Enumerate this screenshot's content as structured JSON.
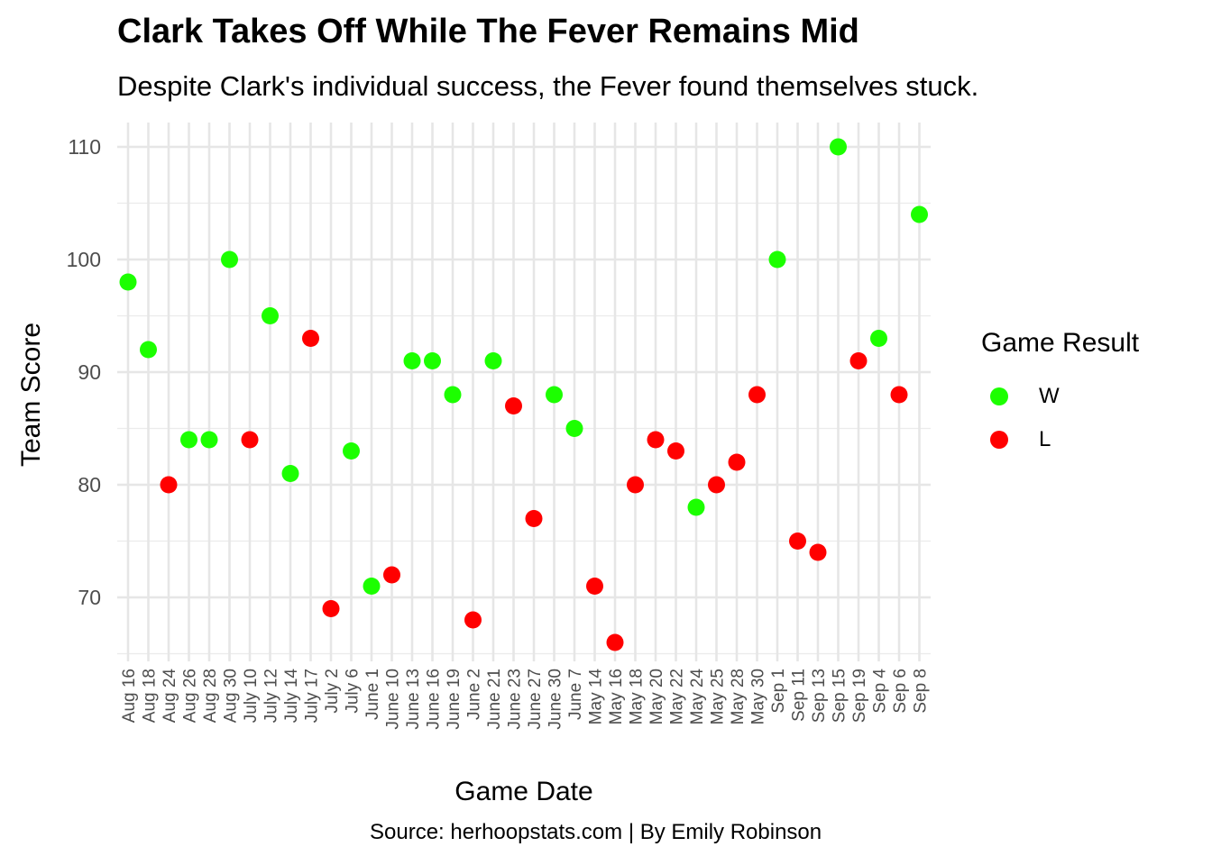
{
  "chart_data": {
    "type": "scatter",
    "title": "Clark Takes Off While The Fever Remains Mid",
    "subtitle": "Despite Clark's individual success, the Fever found themselves stuck.",
    "caption": "Source: herhoopstats.com | By Emily Robinson",
    "xlabel": "Game Date",
    "ylabel": "Team Score",
    "legend_title": "Game Result",
    "legend_position": "right",
    "grid": true,
    "x_scale": "discrete",
    "ylim": [
      64.5,
      111.5
    ],
    "y_ticks": [
      70,
      80,
      90,
      100,
      110
    ],
    "categories": [
      "Aug 16",
      "Aug 18",
      "Aug 24",
      "Aug 26",
      "Aug 28",
      "Aug 30",
      "July 10",
      "July 12",
      "July 14",
      "July 17",
      "July 2",
      "July 6",
      "June 1",
      "June 10",
      "June 13",
      "June 16",
      "June 19",
      "June 2",
      "June 21",
      "June 23",
      "June 27",
      "June 30",
      "June 7",
      "May 14",
      "May 16",
      "May 18",
      "May 20",
      "May 22",
      "May 24",
      "May 25",
      "May 28",
      "May 30",
      "Sep 1",
      "Sep 11",
      "Sep 13",
      "Sep 15",
      "Sep 19",
      "Sep 4",
      "Sep 6",
      "Sep 8"
    ],
    "series": [
      {
        "name": "W",
        "color": "#1CFF00",
        "points": [
          {
            "x": "Aug 16",
            "y": 98
          },
          {
            "x": "Aug 18",
            "y": 92
          },
          {
            "x": "Aug 26",
            "y": 84
          },
          {
            "x": "Aug 28",
            "y": 84
          },
          {
            "x": "Aug 30",
            "y": 100
          },
          {
            "x": "July 12",
            "y": 95
          },
          {
            "x": "July 14",
            "y": 81
          },
          {
            "x": "July 6",
            "y": 83
          },
          {
            "x": "June 1",
            "y": 71
          },
          {
            "x": "June 13",
            "y": 91
          },
          {
            "x": "June 16",
            "y": 91
          },
          {
            "x": "June 19",
            "y": 88
          },
          {
            "x": "June 21",
            "y": 91
          },
          {
            "x": "June 30",
            "y": 88
          },
          {
            "x": "June 7",
            "y": 85
          },
          {
            "x": "May 24",
            "y": 78
          },
          {
            "x": "Sep 1",
            "y": 100
          },
          {
            "x": "Sep 15",
            "y": 110
          },
          {
            "x": "Sep 4",
            "y": 93
          },
          {
            "x": "Sep 8",
            "y": 104
          }
        ]
      },
      {
        "name": "L",
        "color": "#FF0000",
        "points": [
          {
            "x": "Aug 24",
            "y": 80
          },
          {
            "x": "July 10",
            "y": 84
          },
          {
            "x": "July 17",
            "y": 93
          },
          {
            "x": "July 2",
            "y": 69
          },
          {
            "x": "June 10",
            "y": 72
          },
          {
            "x": "June 2",
            "y": 68
          },
          {
            "x": "June 23",
            "y": 87
          },
          {
            "x": "June 27",
            "y": 77
          },
          {
            "x": "May 14",
            "y": 71
          },
          {
            "x": "May 16",
            "y": 66
          },
          {
            "x": "May 18",
            "y": 80
          },
          {
            "x": "May 20",
            "y": 84
          },
          {
            "x": "May 22",
            "y": 83
          },
          {
            "x": "May 25",
            "y": 80
          },
          {
            "x": "May 28",
            "y": 82
          },
          {
            "x": "May 30",
            "y": 88
          },
          {
            "x": "Sep 11",
            "y": 75
          },
          {
            "x": "Sep 13",
            "y": 74
          },
          {
            "x": "Sep 19",
            "y": 91
          },
          {
            "x": "Sep 6",
            "y": 88
          }
        ]
      }
    ]
  }
}
